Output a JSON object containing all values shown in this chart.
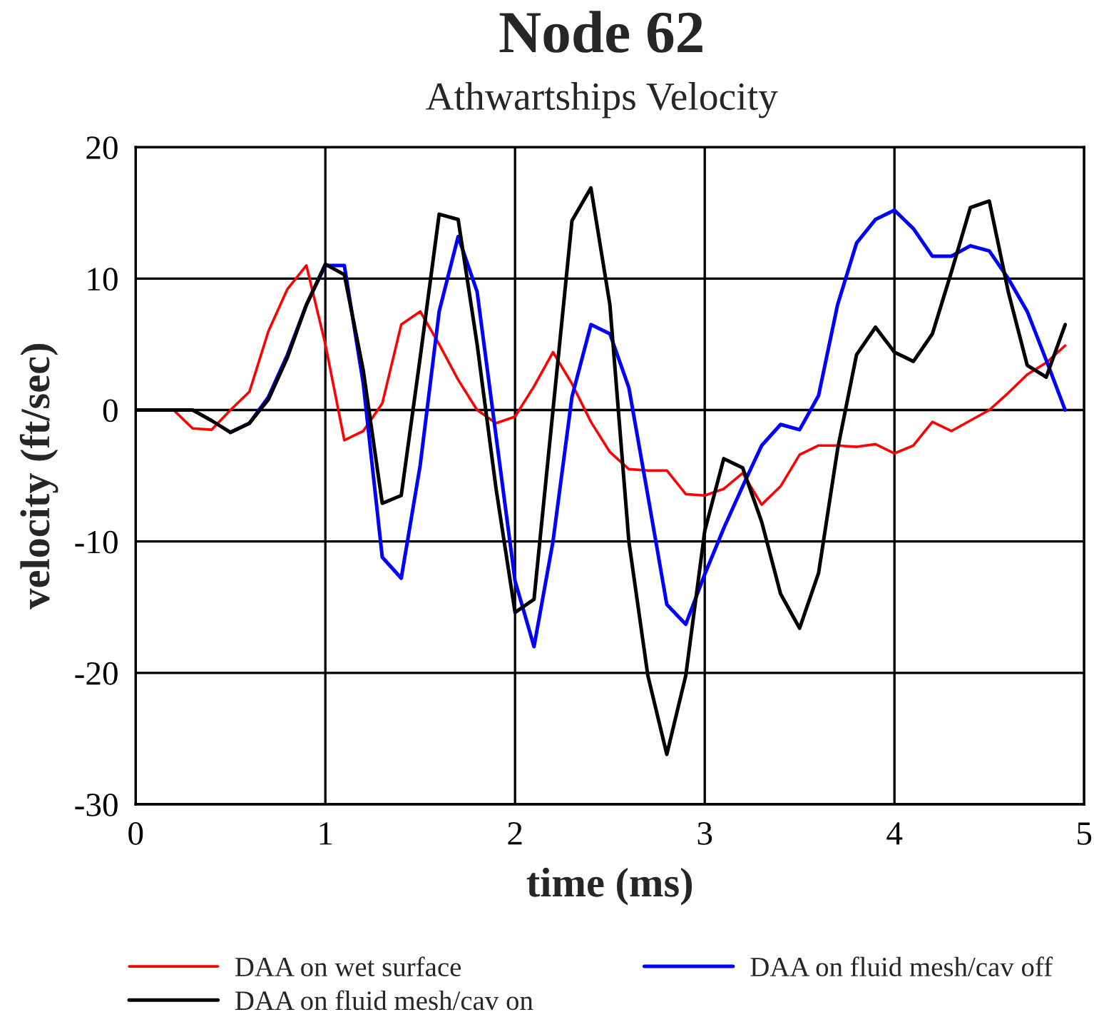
{
  "chart_data": {
    "type": "line",
    "title": "Node 62",
    "subtitle": "Athwartships Velocity",
    "xlabel": "time (ms)",
    "ylabel": "velocity (ft/sec)",
    "x": [
      0,
      0.1,
      0.2,
      0.3,
      0.4,
      0.5,
      0.6,
      0.7,
      0.8,
      0.9,
      1.0,
      1.1,
      1.2,
      1.3,
      1.4,
      1.5,
      1.6,
      1.7,
      1.8,
      1.9,
      2.0,
      2.1,
      2.2,
      2.3,
      2.4,
      2.5,
      2.6,
      2.7,
      2.8,
      2.9,
      3.0,
      3.1,
      3.2,
      3.3,
      3.4,
      3.5,
      3.6,
      3.7,
      3.8,
      3.9,
      4.0,
      4.1,
      4.2,
      4.3,
      4.4,
      4.5,
      4.6,
      4.7,
      4.8,
      4.9
    ],
    "series": [
      {
        "name": "DAA on wet surface",
        "color": "#ff0000",
        "values": [
          0,
          0,
          0,
          -1.4,
          -1.5,
          0,
          1.4,
          6,
          9.2,
          11,
          5,
          -2.3,
          -1.6,
          0.5,
          6.5,
          7.5,
          5,
          2.3,
          0,
          -1,
          -0.5,
          1.8,
          4.4,
          2,
          -0.9,
          -3.2,
          -4.5,
          -4.6,
          -4.6,
          -6.4,
          -6.5,
          -6,
          -4.8,
          -7.2,
          -5.8,
          -3.4,
          -2.7,
          -2.7,
          -2.8,
          -2.6,
          -3.3,
          -2.7,
          -0.9,
          -1.6,
          -0.8,
          0,
          1.3,
          2.7,
          3.6,
          4.9
        ]
      },
      {
        "name": "DAA on fluid mesh/cav off",
        "color": "#0000ff",
        "values": [
          null,
          null,
          null,
          null,
          null,
          -1.7,
          -1,
          1,
          4.2,
          8,
          11,
          11,
          2,
          -11.2,
          -12.8,
          -4.2,
          7.5,
          13.2,
          9,
          -2,
          -13,
          -18,
          -10,
          1,
          6.5,
          5.8,
          1.7,
          -6.5,
          -14.8,
          -16.3,
          -12.5,
          -9,
          -5.8,
          -2.7,
          -1.1,
          -1.5,
          1.1,
          8,
          12.7,
          14.5,
          15.2,
          13.8,
          11.7,
          11.7,
          12.5,
          12.1,
          10,
          7.5,
          3.8,
          0
        ]
      },
      {
        "name": "DAA on fluid mesh/cav on",
        "color": "#000000",
        "values": [
          0,
          0,
          0,
          0,
          -0.8,
          -1.7,
          -1,
          0.8,
          4,
          8,
          11.1,
          10.3,
          3,
          -7.1,
          -6.5,
          4,
          14.9,
          14.5,
          5,
          -6,
          -15.4,
          -14.4,
          0,
          14.4,
          16.9,
          8,
          -10,
          -20.2,
          -26.2,
          -20.2,
          -9.2,
          -3.7,
          -4.4,
          -8.5,
          -14,
          -16.6,
          -12.4,
          -3,
          4.2,
          6.3,
          4.4,
          3.7,
          5.8,
          10.5,
          15.4,
          15.9,
          9,
          3.4,
          2.5,
          6.5
        ]
      }
    ],
    "xlim": [
      0,
      5
    ],
    "xticks": [
      0,
      1,
      2,
      3,
      4,
      5
    ],
    "ylim": [
      -30,
      20
    ],
    "yticks": [
      -30,
      -20,
      -10,
      0,
      10,
      20
    ],
    "grid": true,
    "legend": "bottom",
    "marker": "none",
    "line_style": "solid"
  }
}
